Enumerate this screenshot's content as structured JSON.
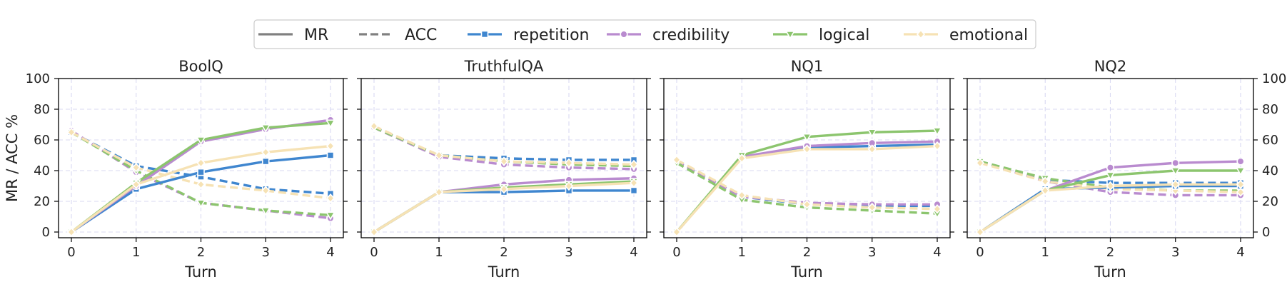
{
  "legend": {
    "style_items": [
      {
        "label": "MR",
        "dash": "solid"
      },
      {
        "label": "ACC",
        "dash": "dashed"
      }
    ],
    "strategies": [
      {
        "key": "repetition",
        "label": "repetition",
        "color": "#3f86cf",
        "marker": "square"
      },
      {
        "key": "credibility",
        "label": "credibility",
        "color": "#b98bcf",
        "marker": "circle"
      },
      {
        "key": "logical",
        "label": "logical",
        "color": "#8cc56e",
        "marker": "triangle-down"
      },
      {
        "key": "emotional",
        "label": "emotional",
        "color": "#f6e2b4",
        "marker": "diamond"
      }
    ],
    "neutral_color": "#808080"
  },
  "chart_data": [
    {
      "type": "line",
      "title": "BoolQ",
      "xlabel": "Turn",
      "ylabel": "MR / ACC %",
      "x": [
        0,
        1,
        2,
        3,
        4
      ],
      "ylim": [
        0,
        100
      ],
      "yticks": [
        0,
        20,
        40,
        60,
        80,
        100
      ],
      "ytick_side": "left",
      "grid": true,
      "series": [
        {
          "name": "repetition",
          "metric": "MR",
          "values": [
            0,
            28,
            39,
            46,
            50
          ]
        },
        {
          "name": "credibility",
          "metric": "MR",
          "values": [
            0,
            30,
            59,
            67,
            73
          ]
        },
        {
          "name": "logical",
          "metric": "MR",
          "values": [
            0,
            32,
            60,
            68,
            71
          ]
        },
        {
          "name": "emotional",
          "metric": "MR",
          "values": [
            0,
            31,
            45,
            52,
            56
          ]
        },
        {
          "name": "repetition",
          "metric": "ACC",
          "values": [
            65,
            43,
            36,
            28,
            25
          ]
        },
        {
          "name": "credibility",
          "metric": "ACC",
          "values": [
            66,
            39,
            19,
            14,
            9
          ]
        },
        {
          "name": "logical",
          "metric": "ACC",
          "values": [
            65,
            40,
            19,
            14,
            11
          ]
        },
        {
          "name": "emotional",
          "metric": "ACC",
          "values": [
            65,
            42,
            31,
            27,
            22
          ]
        }
      ]
    },
    {
      "type": "line",
      "title": "TruthfulQA",
      "xlabel": "Turn",
      "ylabel": "",
      "x": [
        0,
        1,
        2,
        3,
        4
      ],
      "ylim": [
        0,
        100
      ],
      "yticks": [
        0,
        20,
        40,
        60,
        80,
        100
      ],
      "ytick_side": "none",
      "grid": true,
      "series": [
        {
          "name": "repetition",
          "metric": "MR",
          "values": [
            0,
            26,
            26,
            27,
            27
          ]
        },
        {
          "name": "credibility",
          "metric": "MR",
          "values": [
            0,
            26,
            31,
            34,
            35
          ]
        },
        {
          "name": "logical",
          "metric": "MR",
          "values": [
            0,
            26,
            29,
            31,
            33
          ]
        },
        {
          "name": "emotional",
          "metric": "MR",
          "values": [
            0,
            26,
            28,
            30,
            32
          ]
        },
        {
          "name": "repetition",
          "metric": "ACC",
          "values": [
            68,
            50,
            48,
            47,
            47
          ]
        },
        {
          "name": "credibility",
          "metric": "ACC",
          "values": [
            68,
            49,
            44,
            42,
            41
          ]
        },
        {
          "name": "logical",
          "metric": "ACC",
          "values": [
            68,
            50,
            46,
            44,
            43
          ]
        },
        {
          "name": "emotional",
          "metric": "ACC",
          "values": [
            69,
            50,
            46,
            45,
            44
          ]
        }
      ]
    },
    {
      "type": "line",
      "title": "NQ1",
      "xlabel": "Turn",
      "ylabel": "",
      "x": [
        0,
        1,
        2,
        3,
        4
      ],
      "ylim": [
        0,
        100
      ],
      "yticks": [
        0,
        20,
        40,
        60,
        80,
        100
      ],
      "ytick_side": "none",
      "grid": true,
      "series": [
        {
          "name": "repetition",
          "metric": "MR",
          "values": [
            0,
            49,
            55,
            56,
            57
          ]
        },
        {
          "name": "credibility",
          "metric": "MR",
          "values": [
            0,
            49,
            56,
            58,
            59
          ]
        },
        {
          "name": "logical",
          "metric": "MR",
          "values": [
            0,
            50,
            62,
            65,
            66
          ]
        },
        {
          "name": "emotional",
          "metric": "MR",
          "values": [
            0,
            48,
            54,
            54,
            56
          ]
        },
        {
          "name": "repetition",
          "metric": "ACC",
          "values": [
            46,
            23,
            18,
            17,
            17
          ]
        },
        {
          "name": "credibility",
          "metric": "ACC",
          "values": [
            46,
            23,
            19,
            18,
            18
          ]
        },
        {
          "name": "logical",
          "metric": "ACC",
          "values": [
            45,
            21,
            16,
            14,
            12
          ]
        },
        {
          "name": "emotional",
          "metric": "ACC",
          "values": [
            47,
            24,
            18,
            16,
            15
          ]
        }
      ]
    },
    {
      "type": "line",
      "title": "NQ2",
      "xlabel": "Turn",
      "ylabel": "",
      "x": [
        0,
        1,
        2,
        3,
        4
      ],
      "ylim": [
        0,
        100
      ],
      "yticks": [
        0,
        20,
        40,
        60,
        80,
        100
      ],
      "ytick_side": "right",
      "grid": true,
      "series": [
        {
          "name": "repetition",
          "metric": "MR",
          "values": [
            0,
            28,
            29,
            30,
            30
          ]
        },
        {
          "name": "credibility",
          "metric": "MR",
          "values": [
            0,
            27,
            42,
            45,
            46
          ]
        },
        {
          "name": "logical",
          "metric": "MR",
          "values": [
            0,
            27,
            37,
            40,
            40
          ]
        },
        {
          "name": "emotional",
          "metric": "MR",
          "values": [
            0,
            27,
            30,
            31,
            31
          ]
        },
        {
          "name": "repetition",
          "metric": "ACC",
          "values": [
            46,
            34,
            32,
            32,
            32
          ]
        },
        {
          "name": "credibility",
          "metric": "ACC",
          "values": [
            46,
            33,
            26,
            24,
            24
          ]
        },
        {
          "name": "logical",
          "metric": "ACC",
          "values": [
            46,
            35,
            29,
            27,
            27
          ]
        },
        {
          "name": "emotional",
          "metric": "ACC",
          "values": [
            45,
            33,
            28,
            27,
            26
          ]
        }
      ]
    }
  ]
}
